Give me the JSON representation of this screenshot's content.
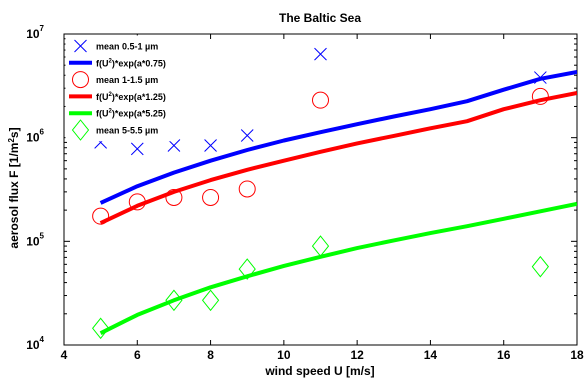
{
  "chart_data": {
    "type": "scatter",
    "title": "The Baltic Sea",
    "xlabel": "wind speed U [m/s]",
    "ylabel": "aerosol flux F [1/m²s]",
    "ylabel_main": "aerosol flux F [1/m",
    "ylabel_sup": "2",
    "ylabel_end": "s]",
    "xlim": [
      4,
      18
    ],
    "ylim": [
      10000,
      10000000
    ],
    "yscale": "log",
    "x_ticks": [
      4,
      6,
      8,
      10,
      12,
      14,
      16,
      18
    ],
    "y_ticks": [
      {
        "value": 10000,
        "base": "10",
        "exp": "4"
      },
      {
        "value": 100000,
        "base": "10",
        "exp": "5"
      },
      {
        "value": 1000000,
        "base": "10",
        "exp": "6"
      },
      {
        "value": 10000000,
        "base": "10",
        "exp": "7"
      }
    ],
    "grid": false,
    "legend_position": "top-left",
    "series": [
      {
        "name": "mean 0.5-1 µm",
        "kind": "marker",
        "marker": "x",
        "color": "#0000ff",
        "x": [
          5,
          6,
          7,
          8,
          9,
          11,
          17
        ],
        "y": [
          900000,
          780000,
          840000,
          840000,
          1050000,
          6400000,
          3800000
        ]
      },
      {
        "name": "f(U²)*exp(a*0.75)",
        "name_pre": "f(U",
        "name_sup": "2",
        "name_post": ")*exp(a*0.75)",
        "kind": "line",
        "color": "#0000ff",
        "x": [
          5,
          6,
          7,
          8,
          9,
          10,
          11,
          12,
          13,
          14,
          15,
          16,
          17,
          18
        ],
        "y": [
          235000,
          340000,
          460000,
          600000,
          760000,
          940000,
          1130000,
          1350000,
          1600000,
          1880000,
          2250000,
          2900000,
          3700000,
          4300000
        ]
      },
      {
        "name": "mean 1-1.5 µm",
        "kind": "marker",
        "marker": "circle",
        "color": "#ff0000",
        "x": [
          5,
          6,
          7,
          8,
          9,
          11,
          17
        ],
        "y": [
          175000,
          240000,
          265000,
          265000,
          320000,
          2300000,
          2500000
        ]
      },
      {
        "name": "f(U²)*exp(a*1.25)",
        "name_pre": "f(U",
        "name_sup": "2",
        "name_post": ")*exp(a*1.25)",
        "kind": "line",
        "color": "#ff0000",
        "x": [
          5,
          6,
          7,
          8,
          9,
          10,
          11,
          12,
          13,
          14,
          15,
          16,
          17,
          18
        ],
        "y": [
          150000,
          220000,
          300000,
          390000,
          490000,
          600000,
          730000,
          880000,
          1040000,
          1230000,
          1440000,
          1880000,
          2300000,
          2700000
        ]
      },
      {
        "name": "f(U²)*exp(a*5.25)",
        "name_pre": "f(U",
        "name_sup": "2",
        "name_post": ")*exp(a*5.25)",
        "kind": "line",
        "color": "#00ff00",
        "x": [
          5,
          6,
          7,
          8,
          9,
          10,
          11,
          12,
          13,
          14,
          15,
          16,
          17,
          18
        ],
        "y": [
          13000,
          19500,
          27000,
          36000,
          46000,
          58000,
          71000,
          86000,
          102000,
          120000,
          140000,
          165000,
          195000,
          230000
        ]
      },
      {
        "name": "mean 5-5.5 µm",
        "kind": "marker",
        "marker": "diamond",
        "color": "#00ff00",
        "x": [
          5,
          7,
          8,
          9,
          11,
          17
        ],
        "y": [
          14500,
          27000,
          27000,
          54000,
          90000,
          57000
        ]
      }
    ]
  }
}
